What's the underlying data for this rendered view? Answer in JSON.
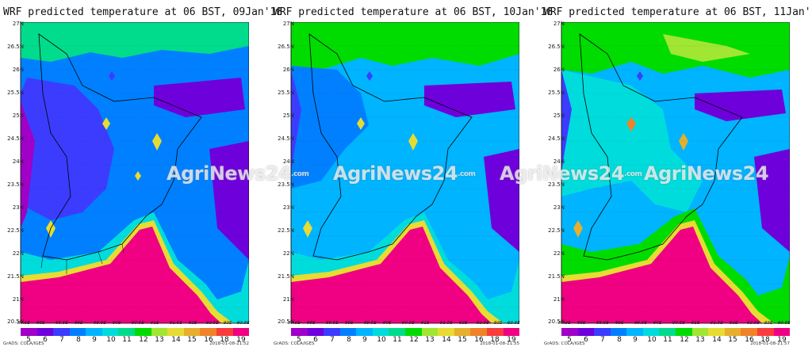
{
  "panels": [
    {
      "title": "WRF predicted temperature at 06 BST, 09Jan'18",
      "timestamp": "2018-01-08-21:52"
    },
    {
      "title": "WRF predicted temperature at 06 BST, 10Jan'18",
      "timestamp": "2018-01-08-21:55"
    },
    {
      "title": "WRF predicted temperature at 06 BST, 11Jan'18",
      "timestamp": "2018-01-08-21:57"
    }
  ],
  "lat_labels": [
    "27N",
    "26.5N",
    "26N",
    "25.5N",
    "25N",
    "24.5N",
    "24N",
    "23.5N",
    "23N",
    "22.5N",
    "22N",
    "21.5N",
    "21N",
    "20.5N"
  ],
  "lon_labels": [
    "87.5E",
    "88E",
    "88.5E",
    "89E",
    "89.5E",
    "90E",
    "90.5E",
    "91E",
    "91.5E",
    "92E",
    "92.5E",
    "93E",
    "93.5E"
  ],
  "colorbar": {
    "labels": [
      "5",
      "6",
      "7",
      "8",
      "9",
      "10",
      "11",
      "12",
      "13",
      "14",
      "15",
      "16",
      "18",
      "19"
    ],
    "colors": [
      "#a000c8",
      "#6e00dc",
      "#3c3cff",
      "#0080ff",
      "#00b4ff",
      "#00dcdc",
      "#00dc8c",
      "#00dc00",
      "#a0e632",
      "#e6dc32",
      "#e6af2d",
      "#f08228",
      "#fa3c3c",
      "#f00082"
    ]
  },
  "credit": "GrADS: COLA/IGES",
  "watermark": {
    "text": "AgriNews24",
    "suffix": ".com"
  },
  "temperature_colors": {
    "cold": "#3c3cff",
    "mid": "#00b4ff",
    "warm": "#00dc00",
    "hot": "#f00082"
  }
}
